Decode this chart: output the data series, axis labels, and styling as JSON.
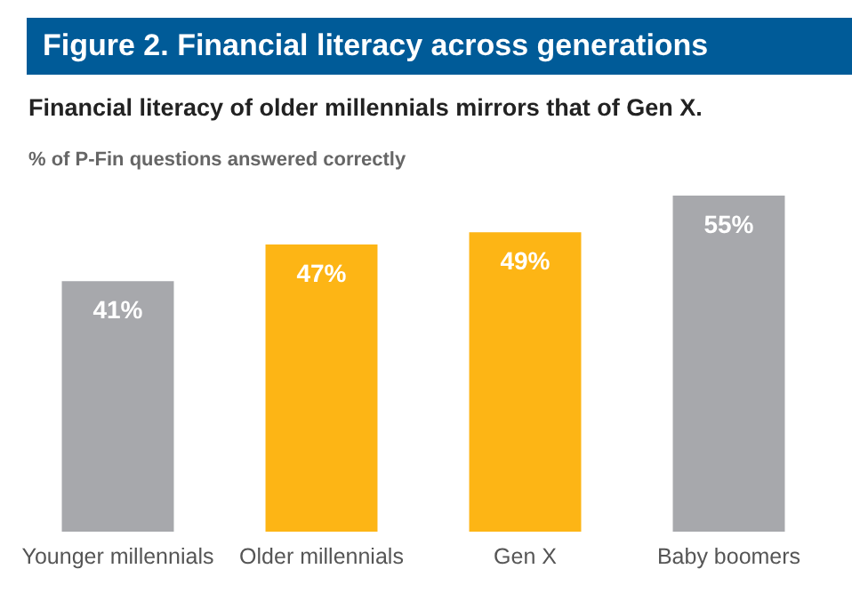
{
  "chart_data": {
    "type": "bar",
    "title": "Figure 2. Financial literacy across generations",
    "subtitle": "Financial literacy of older millennials mirrors that of Gen X.",
    "ylabel": "% of P-Fin questions answered correctly",
    "categories": [
      "Younger millennials",
      "Older millennials",
      "Gen X",
      "Baby boomers"
    ],
    "values": [
      41,
      47,
      49,
      55
    ],
    "colors": [
      "#a7a8ac",
      "#fdb515",
      "#fdb515",
      "#a7a8ac"
    ],
    "value_labels": [
      "41%",
      "47%",
      "49%",
      "55%"
    ],
    "ylim": [
      0,
      55
    ],
    "tick_labels": "x",
    "grid": false,
    "legend": false
  }
}
